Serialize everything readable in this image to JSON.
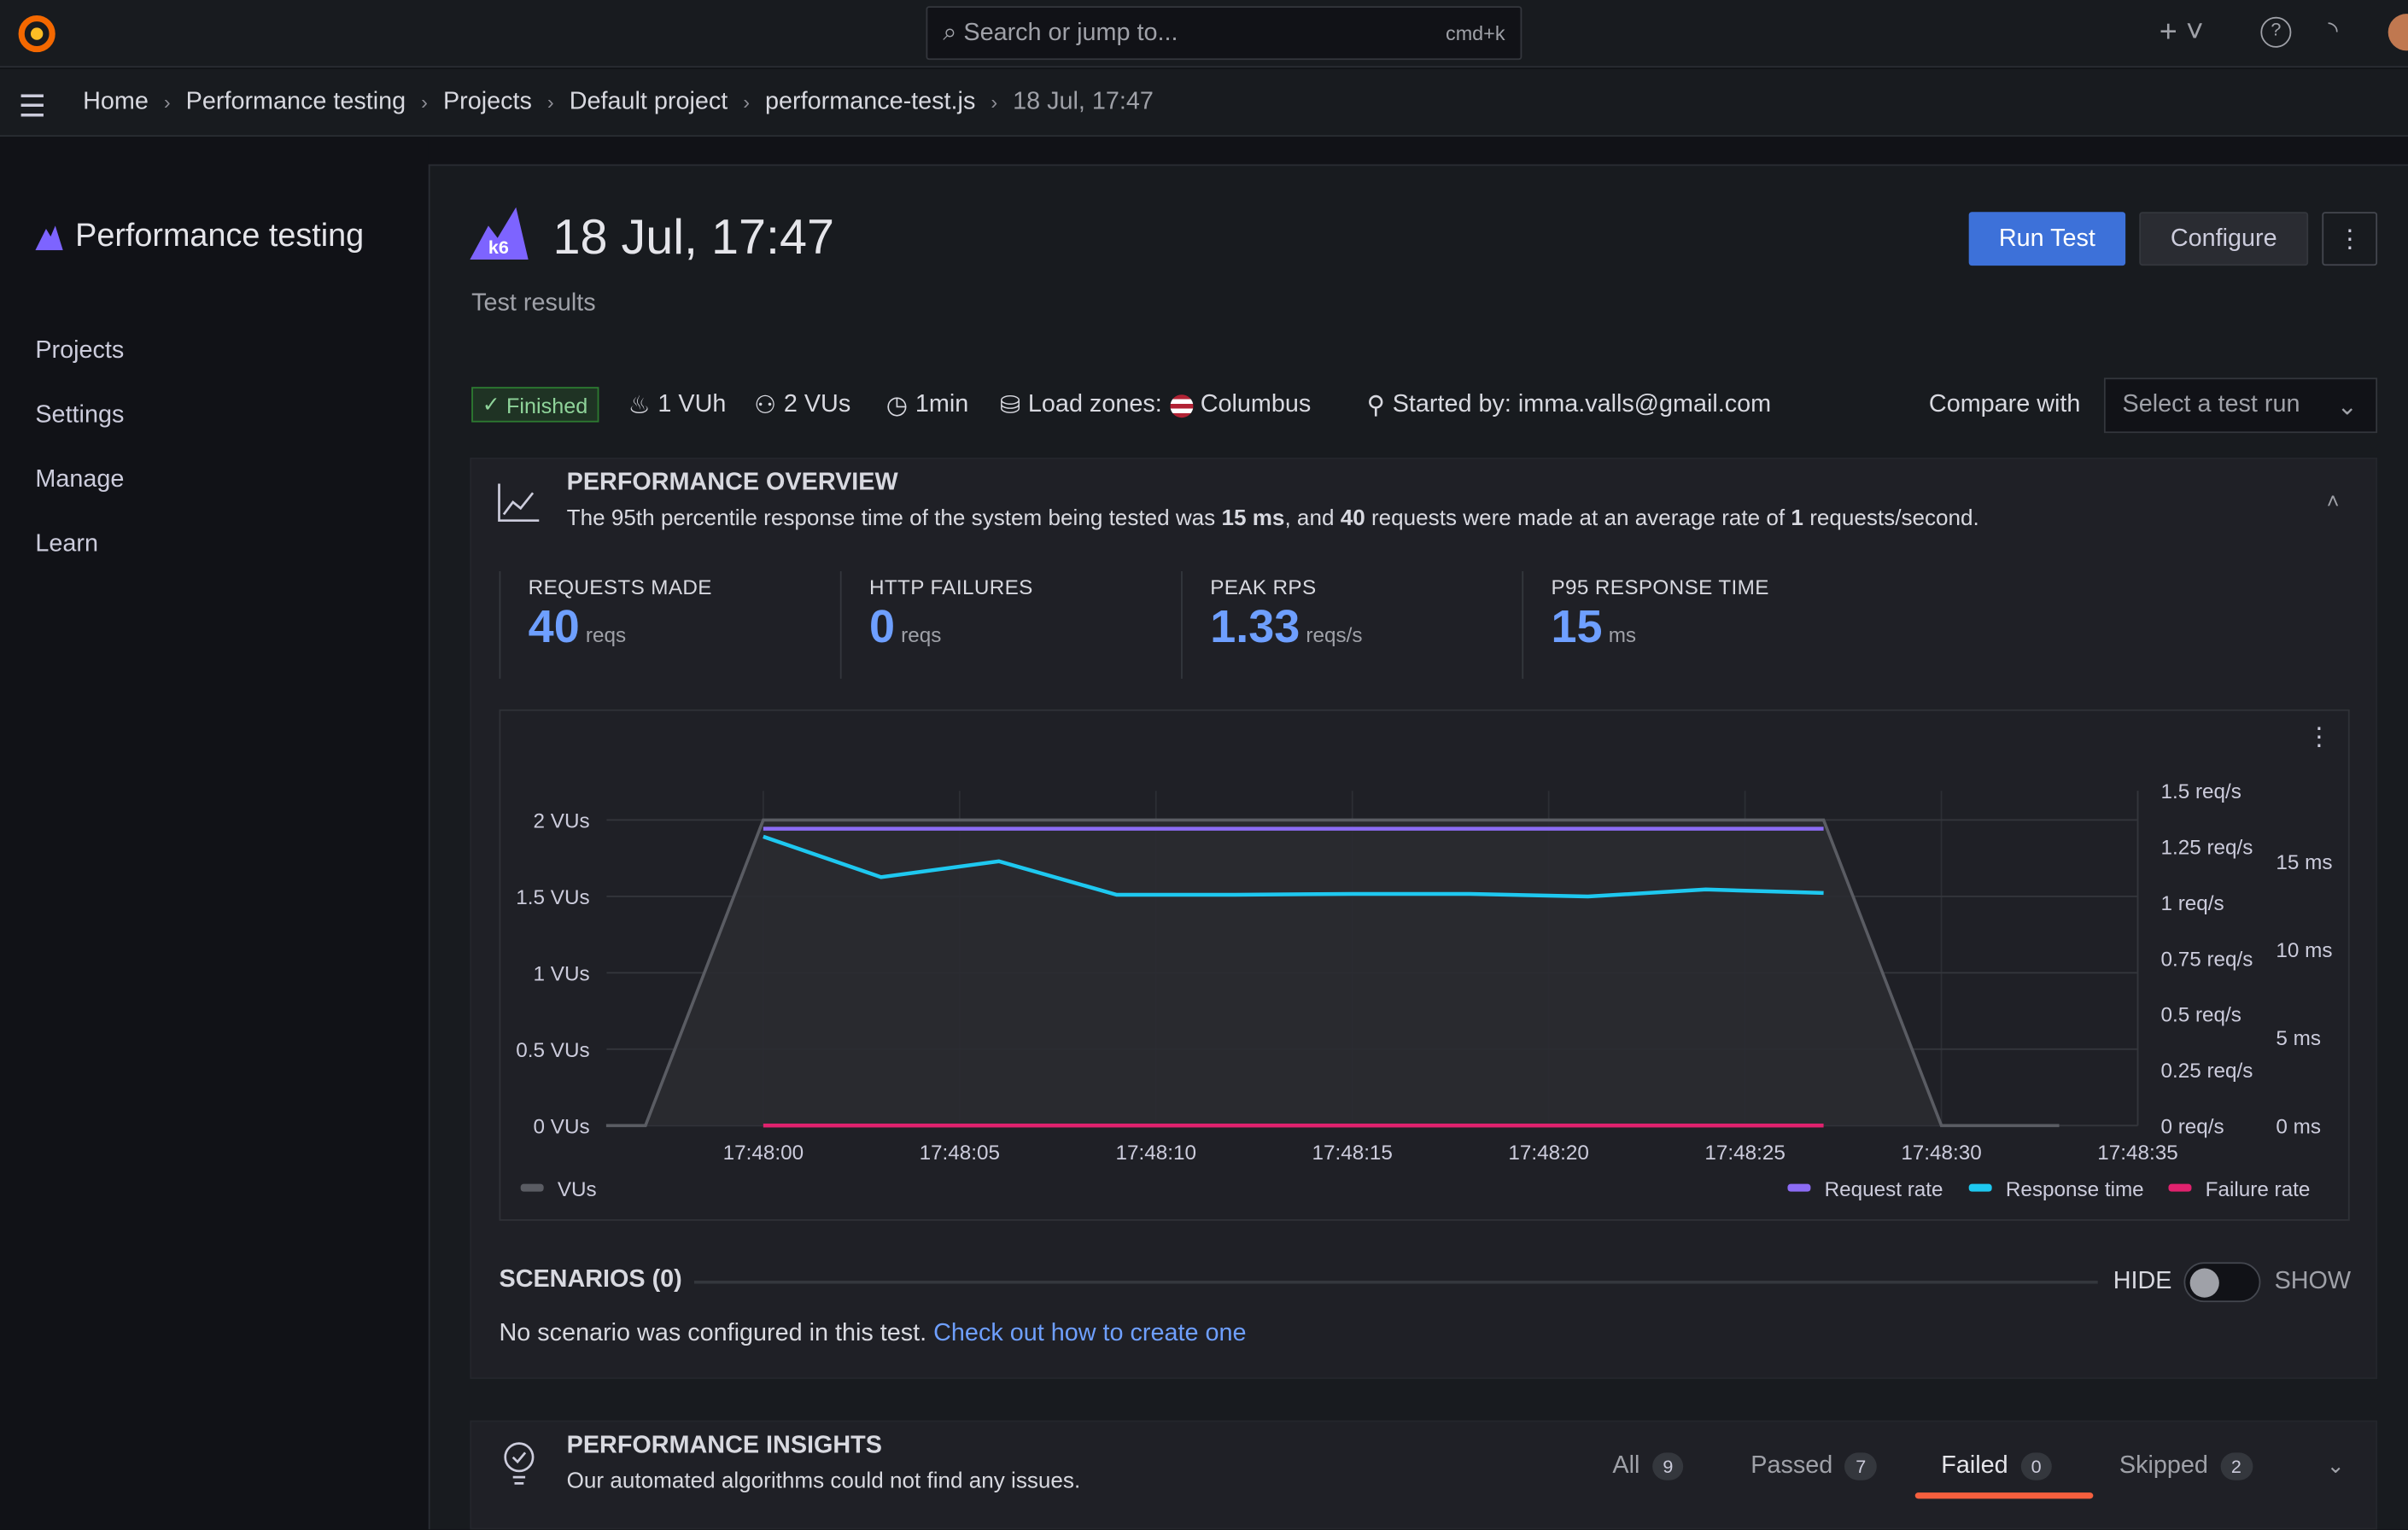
{
  "topbar": {
    "search_placeholder": "Search or jump to...",
    "shortcut": "cmd+k"
  },
  "breadcrumb": [
    "Home",
    "Performance testing",
    "Projects",
    "Default project",
    "performance-test.js",
    "18 Jul, 17:47"
  ],
  "sidebar": {
    "title": "Performance testing",
    "items": [
      "Projects",
      "Settings",
      "Manage",
      "Learn"
    ]
  },
  "header": {
    "title": "18 Jul, 17:47",
    "subtitle": "Test results",
    "run_label": "Run Test",
    "configure_label": "Configure"
  },
  "meta": {
    "status": "Finished",
    "vuh": "1 VUh",
    "vus": "2 VUs",
    "duration": "1min",
    "load_zones_label": "Load zones:",
    "load_zone": "Columbus",
    "started_by": "Started by: imma.valls@gmail.com",
    "compare_label": "Compare with",
    "compare_placeholder": "Select a test run"
  },
  "overview": {
    "title": "PERFORMANCE OVERVIEW",
    "desc_1": "The 95th percentile response time of the system being tested was ",
    "p95": "15 ms",
    "desc_2": ", and ",
    "reqs": "40",
    "desc_3": " requests were made at an average rate of ",
    "rate": "1",
    "desc_4": " requests/second.",
    "stats": [
      {
        "label": "REQUESTS MADE",
        "value": "40",
        "unit": "reqs"
      },
      {
        "label": "HTTP FAILURES",
        "value": "0",
        "unit": "reqs"
      },
      {
        "label": "PEAK RPS",
        "value": "1.33",
        "unit": "reqs/s"
      },
      {
        "label": "P95 RESPONSE TIME",
        "value": "15",
        "unit": "ms"
      }
    ]
  },
  "chart_data": {
    "type": "line",
    "x_ticks": [
      "17:48:00",
      "17:48:05",
      "17:48:10",
      "17:48:15",
      "17:48:20",
      "17:48:25",
      "17:48:30",
      "17:48:35"
    ],
    "left_axis": {
      "ticks": [
        "0 VUs",
        "0.5 VUs",
        "1 VUs",
        "1.5 VUs",
        "2 VUs"
      ],
      "range": [
        0,
        2.2
      ]
    },
    "right_axis_rps": {
      "ticks": [
        "0 req/s",
        "0.25 req/s",
        "0.5 req/s",
        "0.75 req/s",
        "1 req/s",
        "1.25 req/s",
        "1.5 req/s"
      ],
      "range": [
        0,
        1.5
      ]
    },
    "right_axis_ms": {
      "ticks": [
        "0 ms",
        "5 ms",
        "10 ms",
        "15 ms"
      ],
      "range": [
        0,
        19
      ]
    },
    "x_range_seconds": [
      -4,
      35
    ],
    "series": [
      {
        "name": "VUs",
        "axis": "vus",
        "color": "#5a5c63",
        "x": [
          -4,
          -3,
          0,
          27,
          30,
          33
        ],
        "y": [
          0,
          0,
          2,
          2,
          0,
          0
        ]
      },
      {
        "name": "Request rate",
        "axis": "rps",
        "color": "#8c6cf5",
        "x": [
          0,
          27
        ],
        "y": [
          1.33,
          1.33
        ]
      },
      {
        "name": "Response time",
        "axis": "ms",
        "color": "#1ec8f0",
        "x": [
          0,
          3,
          6,
          9,
          12,
          15,
          18,
          21,
          24,
          27
        ],
        "y": [
          16.4,
          14.1,
          15.0,
          13.1,
          13.1,
          13.15,
          13.15,
          13.0,
          13.4,
          13.2
        ]
      },
      {
        "name": "Failure rate",
        "axis": "rps",
        "color": "#e0226e",
        "x": [
          0,
          27
        ],
        "y": [
          0,
          0
        ]
      }
    ],
    "legend_left": "VUs",
    "legend_right": [
      "Request rate",
      "Response time",
      "Failure rate"
    ]
  },
  "scenarios": {
    "title": "SCENARIOS (0)",
    "hide": "HIDE",
    "show": "SHOW",
    "text": "No scenario was configured in this test. ",
    "link": "Check out how to create one"
  },
  "insights": {
    "title": "PERFORMANCE INSIGHTS",
    "desc": "Our automated algorithms could not find any issues.",
    "tabs": [
      {
        "label": "All",
        "count": "9"
      },
      {
        "label": "Passed",
        "count": "7"
      },
      {
        "label": "Failed",
        "count": "0"
      },
      {
        "label": "Skipped",
        "count": "2"
      }
    ]
  }
}
